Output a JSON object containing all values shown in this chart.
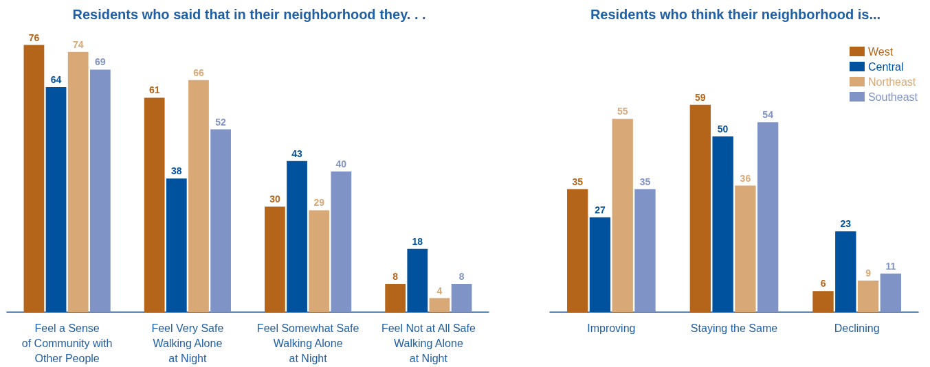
{
  "chart_data": [
    {
      "type": "bar",
      "title": "Residents who said that in their neighborhood they. . .",
      "categories": [
        "Feel a Sense\nof Community with\nOther People",
        "Feel Very Safe\nWalking Alone\nat Night",
        "Feel Somewhat Safe\nWalking Alone\nat Night",
        "Feel Not at All Safe\nWalking Alone\nat Night"
      ],
      "series": [
        {
          "color": "#b4651a",
          "values": [
            76,
            61,
            30,
            8
          ]
        },
        {
          "color": "#00519e",
          "values": [
            64,
            38,
            43,
            18
          ]
        },
        {
          "color": "#d9a877",
          "values": [
            74,
            66,
            29,
            4
          ]
        },
        {
          "color": "#8093c6",
          "values": [
            69,
            52,
            40,
            8
          ]
        }
      ],
      "data_labels": true,
      "tick_labels": "x"
    },
    {
      "type": "bar",
      "title": "Residents who think their neighborhood is...",
      "categories": [
        "Improving",
        "Staying the Same",
        "Declining"
      ],
      "series": [
        {
          "name": "West",
          "color": "#b4651a",
          "values": [
            35,
            59,
            6
          ]
        },
        {
          "name": "Central",
          "color": "#00519e",
          "values": [
            27,
            50,
            23
          ]
        },
        {
          "name": "Northeast",
          "color": "#d9a877",
          "values": [
            55,
            36,
            9
          ]
        },
        {
          "name": "Southeast",
          "color": "#8093c6",
          "values": [
            35,
            54,
            11
          ]
        }
      ],
      "data_labels": true,
      "tick_labels": "x",
      "legend": "top right"
    }
  ]
}
